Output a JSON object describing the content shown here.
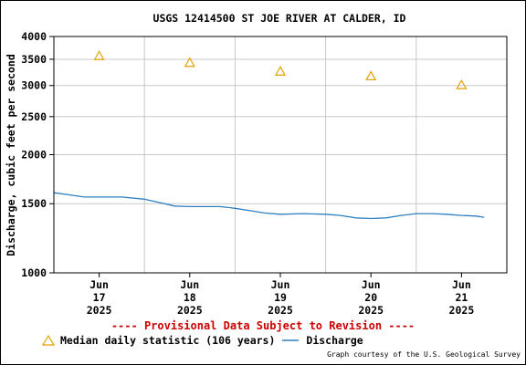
{
  "chart_data": {
    "type": "line",
    "title": "USGS 12414500 ST JOE RIVER AT CALDER, ID",
    "ylabel": "Discharge, cubic feet per second",
    "xlabel": "",
    "y_scale": "log",
    "ylim": [
      1000,
      4000
    ],
    "y_ticks": [
      1000,
      1500,
      2000,
      2500,
      3000,
      3500,
      4000
    ],
    "x_range": [
      "2025-06-16 12:00",
      "2025-06-21 12:00"
    ],
    "x_ticks": [
      {
        "t": "2025-06-17 00:00",
        "line1": "Jun",
        "line2": "17",
        "line3": "2025"
      },
      {
        "t": "2025-06-18 00:00",
        "line1": "Jun",
        "line2": "18",
        "line3": "2025"
      },
      {
        "t": "2025-06-19 00:00",
        "line1": "Jun",
        "line2": "19",
        "line3": "2025"
      },
      {
        "t": "2025-06-20 00:00",
        "line1": "Jun",
        "line2": "20",
        "line3": "2025"
      },
      {
        "t": "2025-06-21 00:00",
        "line1": "Jun",
        "line2": "21",
        "line3": "2025"
      }
    ],
    "grid": true,
    "series": [
      {
        "name": "Median daily statistic (106 years)",
        "style": "triangle-marker",
        "color": "#e0a000",
        "points": [
          {
            "x": "2025-06-17 00:00",
            "y": 3570
          },
          {
            "x": "2025-06-18 00:00",
            "y": 3430
          },
          {
            "x": "2025-06-19 00:00",
            "y": 3260
          },
          {
            "x": "2025-06-20 00:00",
            "y": 3170
          },
          {
            "x": "2025-06-21 00:00",
            "y": 3010
          }
        ]
      },
      {
        "name": "Discharge",
        "style": "line",
        "color": "#2f7fbf",
        "points": [
          {
            "x": "2025-06-16 12:00",
            "y": 1600
          },
          {
            "x": "2025-06-16 16:00",
            "y": 1580
          },
          {
            "x": "2025-06-16 20:00",
            "y": 1560
          },
          {
            "x": "2025-06-17 00:00",
            "y": 1560
          },
          {
            "x": "2025-06-17 06:00",
            "y": 1560
          },
          {
            "x": "2025-06-17 12:00",
            "y": 1540
          },
          {
            "x": "2025-06-17 16:00",
            "y": 1510
          },
          {
            "x": "2025-06-17 20:00",
            "y": 1480
          },
          {
            "x": "2025-06-18 00:00",
            "y": 1475
          },
          {
            "x": "2025-06-18 08:00",
            "y": 1475
          },
          {
            "x": "2025-06-18 12:00",
            "y": 1460
          },
          {
            "x": "2025-06-18 16:00",
            "y": 1440
          },
          {
            "x": "2025-06-18 20:00",
            "y": 1420
          },
          {
            "x": "2025-06-19 00:00",
            "y": 1410
          },
          {
            "x": "2025-06-19 06:00",
            "y": 1415
          },
          {
            "x": "2025-06-19 12:00",
            "y": 1410
          },
          {
            "x": "2025-06-19 16:00",
            "y": 1400
          },
          {
            "x": "2025-06-19 20:00",
            "y": 1380
          },
          {
            "x": "2025-06-20 00:00",
            "y": 1375
          },
          {
            "x": "2025-06-20 04:00",
            "y": 1380
          },
          {
            "x": "2025-06-20 08:00",
            "y": 1400
          },
          {
            "x": "2025-06-20 12:00",
            "y": 1415
          },
          {
            "x": "2025-06-20 16:00",
            "y": 1415
          },
          {
            "x": "2025-06-20 20:00",
            "y": 1410
          },
          {
            "x": "2025-06-21 00:00",
            "y": 1400
          },
          {
            "x": "2025-06-21 04:00",
            "y": 1395
          },
          {
            "x": "2025-06-21 06:00",
            "y": 1385
          }
        ]
      }
    ]
  },
  "notice": "---- Provisional Data Subject to Revision ----",
  "legend": {
    "median_label": "Median daily statistic (106 years)",
    "discharge_label": "Discharge"
  },
  "credit": "Graph courtesy of the U.S. Geological Survey",
  "colors": {
    "median": "#e0a000",
    "discharge": "#2f7fbf",
    "notice": "#cc0000",
    "grid": "#c8c8c8"
  }
}
